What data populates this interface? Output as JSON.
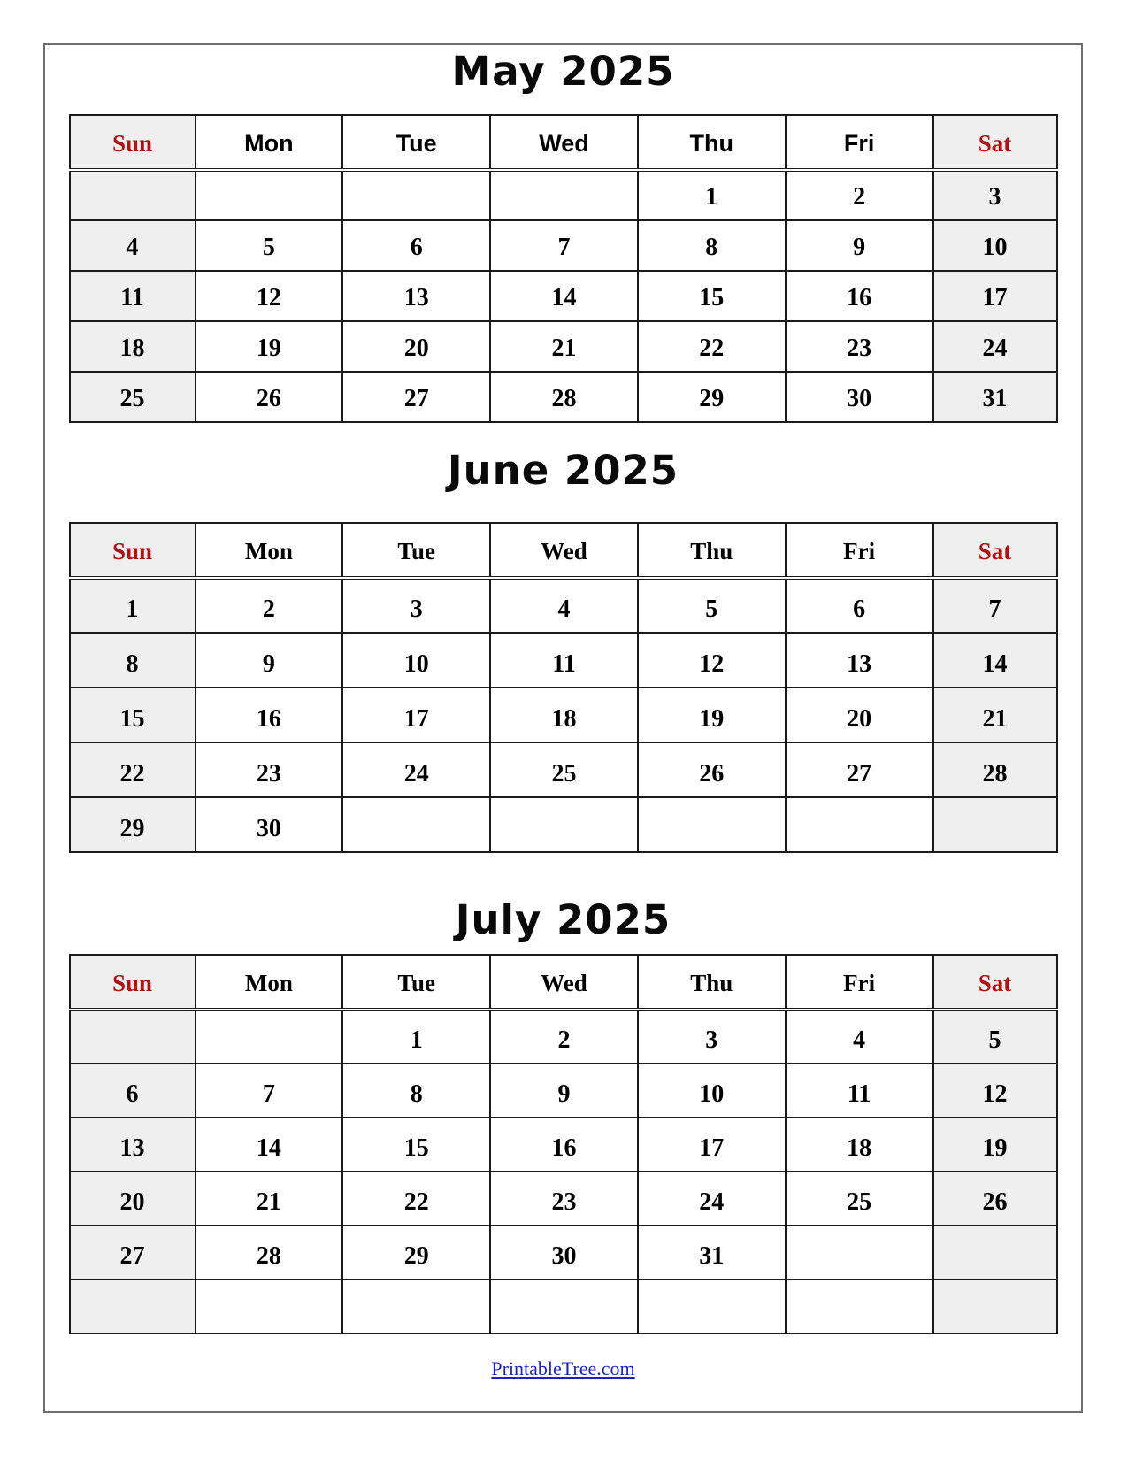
{
  "months": [
    {
      "title": "May 2025",
      "day_headers": [
        "Sun",
        "Mon",
        "Tue",
        "Wed",
        "Thu",
        "Fri",
        "Sat"
      ],
      "weeks": [
        [
          "",
          "",
          "",
          "",
          "1",
          "2",
          "3"
        ],
        [
          "4",
          "5",
          "6",
          "7",
          "8",
          "9",
          "10"
        ],
        [
          "11",
          "12",
          "13",
          "14",
          "15",
          "16",
          "17"
        ],
        [
          "18",
          "19",
          "20",
          "21",
          "22",
          "23",
          "24"
        ],
        [
          "25",
          "26",
          "27",
          "28",
          "29",
          "30",
          "31"
        ]
      ]
    },
    {
      "title": "June 2025",
      "day_headers": [
        "Sun",
        "Mon",
        "Tue",
        "Wed",
        "Thu",
        "Fri",
        "Sat"
      ],
      "weeks": [
        [
          "1",
          "2",
          "3",
          "4",
          "5",
          "6",
          "7"
        ],
        [
          "8",
          "9",
          "10",
          "11",
          "12",
          "13",
          "14"
        ],
        [
          "15",
          "16",
          "17",
          "18",
          "19",
          "20",
          "21"
        ],
        [
          "22",
          "23",
          "24",
          "25",
          "26",
          "27",
          "28"
        ],
        [
          "29",
          "30",
          "",
          "",
          "",
          "",
          ""
        ]
      ]
    },
    {
      "title": "July 2025",
      "day_headers": [
        "Sun",
        "Mon",
        "Tue",
        "Wed",
        "Thu",
        "Fri",
        "Sat"
      ],
      "weeks": [
        [
          "",
          "",
          "1",
          "2",
          "3",
          "4",
          "5"
        ],
        [
          "6",
          "7",
          "8",
          "9",
          "10",
          "11",
          "12"
        ],
        [
          "13",
          "14",
          "15",
          "16",
          "17",
          "18",
          "19"
        ],
        [
          "20",
          "21",
          "22",
          "23",
          "24",
          "25",
          "26"
        ],
        [
          "27",
          "28",
          "29",
          "30",
          "31",
          "",
          ""
        ],
        [
          "",
          "",
          "",
          "",
          "",
          "",
          ""
        ]
      ]
    }
  ],
  "footer": {
    "link_text": "PrintableTree.com"
  },
  "colors": {
    "weekend_text": "#b01212",
    "weekend_bg": "#efefef",
    "grid_border": "#1a1a1a",
    "page_border": "#6e6e6e",
    "footer_link": "#1e1ecc",
    "title_text": "#0a0a0a"
  }
}
